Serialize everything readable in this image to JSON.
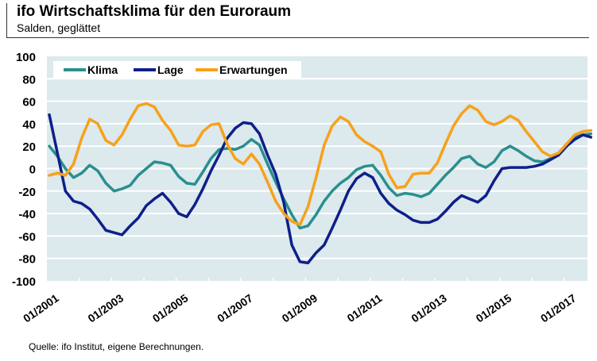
{
  "header": {
    "title": "ifo Wirtschaftsklima für den Euroraum",
    "subtitle": "Salden, geglättet"
  },
  "footer": {
    "source": "Quelle: ifo Institut, eigene Berechnungen."
  },
  "colors": {
    "plot_bg": "#dce9ed",
    "grid": "#ffffff",
    "klima": "#2a8f8f",
    "lage": "#0f1f8a",
    "erwartungen": "#f7a11a"
  },
  "chart_data": {
    "type": "line",
    "title": "ifo Wirtschaftsklima für den Euroraum",
    "subtitle": "Salden, geglättet",
    "xlabel": "",
    "ylabel": "",
    "ylim": [
      -100,
      100
    ],
    "yticks": [
      100,
      80,
      60,
      40,
      20,
      0,
      -20,
      -40,
      -60,
      -80,
      -100
    ],
    "xticks": [
      "01/2001",
      "01/2003",
      "01/2005",
      "01/2007",
      "01/2009",
      "01/2011",
      "01/2013",
      "01/2015",
      "01/2017"
    ],
    "x_start": "2001Q1",
    "x_frequency": "quarterly",
    "grid": true,
    "legend_position": "top-left",
    "series": [
      {
        "name": "Klima",
        "values": [
          20,
          11,
          0,
          -8,
          -4,
          3,
          -2,
          -13,
          -20,
          -18,
          -15,
          -6,
          0,
          6,
          5,
          3,
          -7,
          -13,
          -14,
          -3,
          9,
          17,
          18,
          17,
          20,
          26,
          21,
          4,
          -12,
          -27,
          -41,
          -53,
          -51,
          -41,
          -29,
          -20,
          -13,
          -8,
          -1,
          2,
          3,
          -6,
          -17,
          -24,
          -22,
          -23,
          -25,
          -22,
          -14,
          -6,
          1,
          9,
          11,
          4,
          1,
          6,
          16,
          20,
          16,
          11,
          7,
          6,
          9,
          14,
          22,
          28,
          30,
          31
        ]
      },
      {
        "name": "Lage",
        "values": [
          48,
          14,
          -20,
          -29,
          -31,
          -36,
          -45,
          -55,
          -57,
          -59,
          -51,
          -44,
          -33,
          -27,
          -22,
          -30,
          -40,
          -43,
          -32,
          -18,
          -2,
          12,
          27,
          36,
          41,
          40,
          31,
          12,
          -5,
          -30,
          -68,
          -83,
          -84,
          -75,
          -68,
          -53,
          -37,
          -20,
          -9,
          -4,
          -8,
          -22,
          -31,
          -37,
          -41,
          -46,
          -48,
          -48,
          -45,
          -38,
          -30,
          -24,
          -27,
          -30,
          -24,
          -11,
          0,
          1,
          1,
          1,
          2,
          4,
          8,
          12,
          20,
          26,
          30,
          28
        ]
      },
      {
        "name": "Erwartungen",
        "values": [
          -6,
          -4,
          -6,
          4,
          27,
          44,
          40,
          25,
          21,
          30,
          44,
          56,
          58,
          55,
          43,
          34,
          21,
          20,
          21,
          33,
          39,
          40,
          22,
          9,
          4,
          13,
          4,
          -12,
          -29,
          -40,
          -47,
          -50,
          -34,
          -8,
          21,
          38,
          46,
          42,
          30,
          24,
          20,
          15,
          -5,
          -17,
          -16,
          -5,
          -4,
          -4,
          5,
          22,
          38,
          49,
          56,
          52,
          42,
          39,
          42,
          47,
          43,
          33,
          24,
          15,
          11,
          14,
          22,
          30,
          33,
          34
        ]
      }
    ]
  }
}
